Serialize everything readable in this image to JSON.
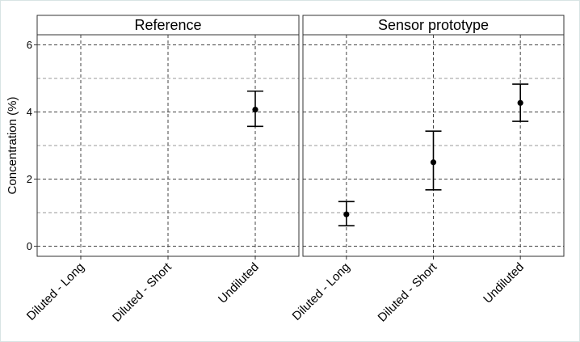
{
  "chart_data": {
    "type": "scatter",
    "ylabel": "Concentration (%)",
    "xlabel": "",
    "ylim": [
      -0.3,
      6.3
    ],
    "y_ticks": [
      0,
      2,
      4,
      6
    ],
    "categories": [
      "Diluted - Long",
      "Diluted - Short",
      "Undiluted"
    ],
    "grid": true,
    "legend": "none",
    "panels": [
      {
        "title": "Reference",
        "points": [
          {
            "category": "Undiluted",
            "y": 4.07,
            "ymin": 3.57,
            "ymax": 4.62
          }
        ]
      },
      {
        "title": "Sensor prototype",
        "points": [
          {
            "category": "Diluted - Long",
            "y": 0.95,
            "ymin": 0.61,
            "ymax": 1.33
          },
          {
            "category": "Diluted - Short",
            "y": 2.5,
            "ymin": 1.68,
            "ymax": 3.43
          },
          {
            "category": "Undiluted",
            "y": 4.27,
            "ymin": 3.72,
            "ymax": 4.83
          }
        ]
      }
    ]
  }
}
